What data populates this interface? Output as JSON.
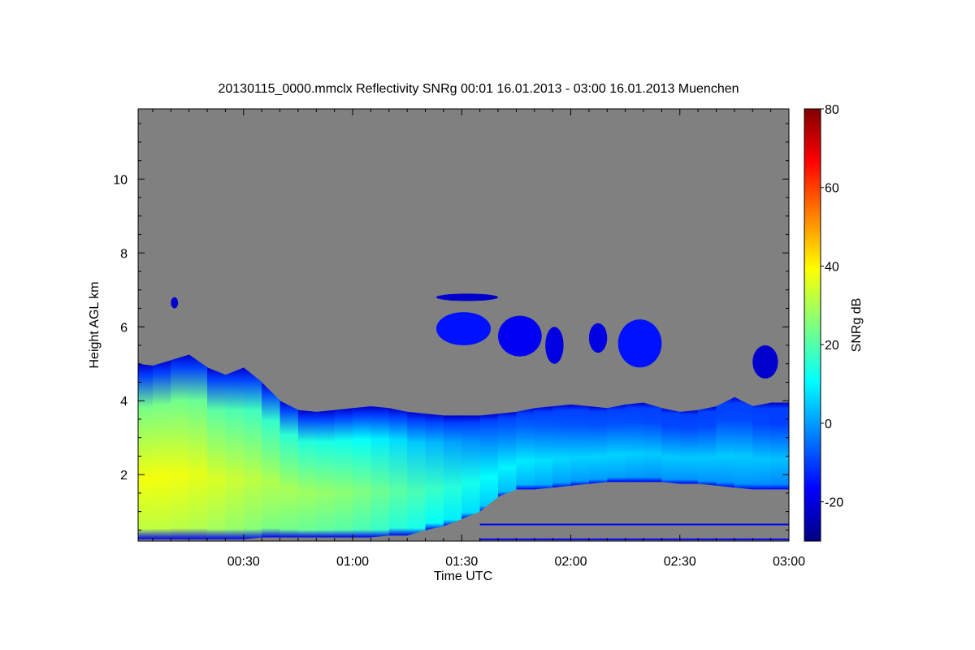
{
  "chart_data": {
    "type": "heatmap",
    "title": "20130115_0000.mmclx Reflectivity SNRg   00:01 16.01.2013 - 03:00 16.01.2013 Muenchen",
    "xlabel": "Time UTC",
    "ylabel": "Height AGL km",
    "colorbar_label": "SNRg dB",
    "x_unit": "minutes after 00:00 UTC",
    "xlim": [
      1,
      180
    ],
    "ylim": [
      0.2,
      11.9
    ],
    "clim": [
      -30,
      80
    ],
    "x_ticks": [
      {
        "value": 30,
        "label": "00:30"
      },
      {
        "value": 60,
        "label": "01:00"
      },
      {
        "value": 90,
        "label": "01:30"
      },
      {
        "value": 120,
        "label": "02:00"
      },
      {
        "value": 150,
        "label": "02:30"
      },
      {
        "value": 180,
        "label": "03:00"
      }
    ],
    "y_ticks": [
      {
        "value": 2,
        "label": "2"
      },
      {
        "value": 4,
        "label": "4"
      },
      {
        "value": 6,
        "label": "6"
      },
      {
        "value": 8,
        "label": "8"
      },
      {
        "value": 10,
        "label": "10"
      }
    ],
    "colorbar_ticks": [
      {
        "value": -20,
        "label": "-20"
      },
      {
        "value": 0,
        "label": "0"
      },
      {
        "value": 20,
        "label": "20"
      },
      {
        "value": 40,
        "label": "40"
      },
      {
        "value": 60,
        "label": "60"
      },
      {
        "value": 80,
        "label": "80"
      }
    ],
    "background_color": "#808080",
    "colormap": [
      "#000080",
      "#0000ff",
      "#00ffff",
      "#ffff00",
      "#ff0000",
      "#800000"
    ],
    "main_layer": {
      "description_keys": [
        "time",
        "top_km",
        "base_km"
      ],
      "time": [
        1,
        5,
        10,
        15,
        20,
        25,
        30,
        35,
        40,
        45,
        50,
        55,
        60,
        65,
        70,
        75,
        80,
        85,
        90,
        95,
        100,
        105,
        110,
        115,
        120,
        125,
        130,
        135,
        140,
        145,
        150,
        155,
        160,
        165,
        170,
        175,
        180
      ],
      "top_km": [
        5.0,
        4.95,
        5.1,
        5.25,
        4.9,
        4.7,
        4.9,
        4.5,
        4.0,
        3.75,
        3.7,
        3.75,
        3.8,
        3.85,
        3.8,
        3.7,
        3.65,
        3.6,
        3.6,
        3.6,
        3.65,
        3.7,
        3.8,
        3.85,
        3.9,
        3.85,
        3.8,
        3.9,
        3.95,
        3.8,
        3.7,
        3.75,
        3.85,
        4.1,
        3.85,
        3.95,
        3.95
      ],
      "base_km": [
        0.25,
        0.25,
        0.25,
        0.25,
        0.25,
        0.25,
        0.25,
        0.3,
        0.3,
        0.3,
        0.3,
        0.3,
        0.3,
        0.3,
        0.35,
        0.35,
        0.5,
        0.6,
        0.8,
        1.0,
        1.4,
        1.6,
        1.6,
        1.65,
        1.7,
        1.75,
        1.8,
        1.8,
        1.8,
        1.8,
        1.75,
        1.75,
        1.7,
        1.65,
        1.6,
        1.6,
        1.6
      ],
      "peak_snr_db": [
        38,
        38,
        38,
        37,
        36,
        34,
        33,
        31,
        30,
        29,
        28,
        27,
        26,
        24,
        22,
        20,
        18,
        16,
        14,
        12,
        10,
        9,
        8,
        7,
        6,
        6,
        6,
        6,
        5,
        5,
        5,
        5,
        5,
        5,
        5,
        4,
        4
      ]
    },
    "upper_layer_patches": [
      {
        "t0": 83,
        "t1": 98,
        "base_km": 5.5,
        "top_km": 6.4,
        "snr_db": -15
      },
      {
        "t0": 100,
        "t1": 112,
        "base_km": 5.2,
        "top_km": 6.3,
        "snr_db": -18
      },
      {
        "t0": 113,
        "t1": 118,
        "base_km": 5.0,
        "top_km": 6.0,
        "snr_db": -20
      },
      {
        "t0": 125,
        "t1": 130,
        "base_km": 5.3,
        "top_km": 6.1,
        "snr_db": -20
      },
      {
        "t0": 133,
        "t1": 145,
        "base_km": 4.9,
        "top_km": 6.2,
        "snr_db": -15
      },
      {
        "t0": 170,
        "t1": 177,
        "base_km": 4.6,
        "top_km": 5.5,
        "snr_db": -22
      },
      {
        "t0": 83,
        "t1": 100,
        "base_km": 6.7,
        "top_km": 6.9,
        "snr_db": -22
      },
      {
        "t0": 10,
        "t1": 12,
        "base_km": 6.5,
        "top_km": 6.8,
        "snr_db": -22
      }
    ],
    "ground_lines_km": [
      0.25,
      0.65
    ]
  }
}
